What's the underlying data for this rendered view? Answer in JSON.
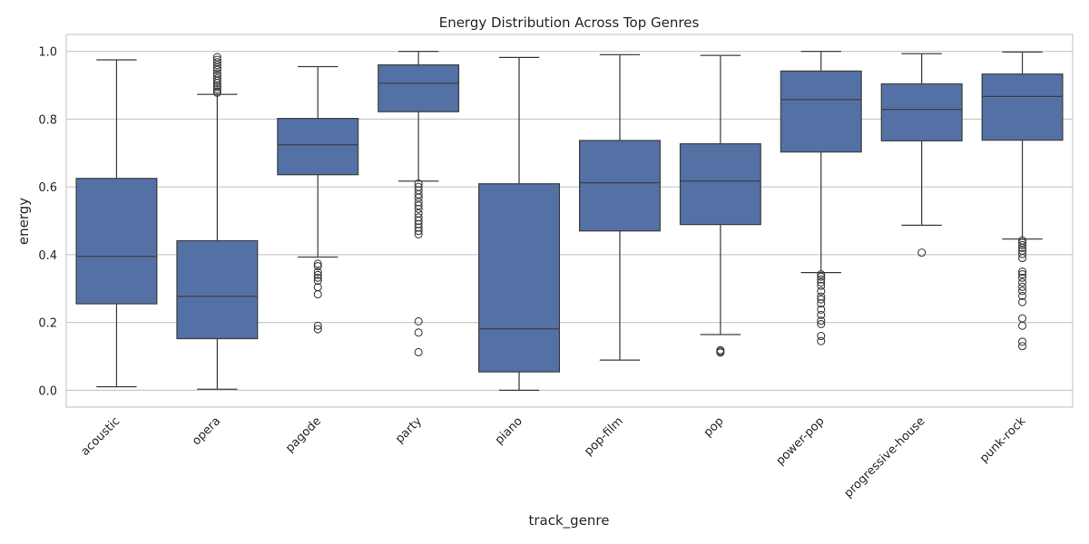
{
  "chart_data": {
    "type": "box",
    "title": "Energy Distribution Across Top Genres",
    "xlabel": "track_genre",
    "ylabel": "energy",
    "ylim": [
      -0.05,
      1.05
    ],
    "yticks": [
      0.0,
      0.2,
      0.4,
      0.6,
      0.8,
      1.0
    ],
    "ytick_labels": [
      "0.0",
      "0.2",
      "0.4",
      "0.6",
      "0.8",
      "1.0"
    ],
    "grid": true,
    "box_color": "#5471a6",
    "line_color": "#3f3f3f",
    "categories": [
      "acoustic",
      "opera",
      "pagode",
      "party",
      "piano",
      "pop-film",
      "pop",
      "power-pop",
      "progressive-house",
      "punk-rock"
    ],
    "boxes": [
      {
        "genre": "acoustic",
        "whisker_low": 0.01,
        "q1": 0.255,
        "median": 0.395,
        "q3": 0.625,
        "whisker_high": 0.975,
        "outliers": []
      },
      {
        "genre": "opera",
        "whisker_low": 0.003,
        "q1": 0.152,
        "median": 0.277,
        "q3": 0.441,
        "whisker_high": 0.873,
        "outliers": [
          0.878,
          0.882,
          0.888,
          0.895,
          0.9,
          0.907,
          0.913,
          0.92,
          0.928,
          0.935,
          0.945,
          0.952,
          0.96,
          0.968,
          0.975,
          0.983
        ]
      },
      {
        "genre": "pagode",
        "whisker_low": 0.393,
        "q1": 0.636,
        "median": 0.724,
        "q3": 0.802,
        "whisker_high": 0.955,
        "outliers": [
          0.373,
          0.366,
          0.349,
          0.34,
          0.332,
          0.323,
          0.304,
          0.283,
          0.19,
          0.18
        ]
      },
      {
        "genre": "party",
        "whisker_low": 0.617,
        "q1": 0.822,
        "median": 0.906,
        "q3": 0.96,
        "whisker_high": 1.0,
        "outliers": [
          0.61,
          0.6,
          0.59,
          0.578,
          0.568,
          0.555,
          0.545,
          0.535,
          0.522,
          0.51,
          0.5,
          0.49,
          0.48,
          0.47,
          0.46,
          0.203,
          0.17,
          0.112
        ]
      },
      {
        "genre": "piano",
        "whisker_low": 0.0,
        "q1": 0.054,
        "median": 0.181,
        "q3": 0.609,
        "whisker_high": 0.982,
        "outliers": []
      },
      {
        "genre": "pop-film",
        "whisker_low": 0.089,
        "q1": 0.47,
        "median": 0.612,
        "q3": 0.737,
        "whisker_high": 0.99,
        "outliers": []
      },
      {
        "genre": "pop",
        "whisker_low": 0.164,
        "q1": 0.489,
        "median": 0.617,
        "q3": 0.727,
        "whisker_high": 0.988,
        "outliers": [
          0.118,
          0.114,
          0.111
        ]
      },
      {
        "genre": "power-pop",
        "whisker_low": 0.347,
        "q1": 0.703,
        "median": 0.858,
        "q3": 0.942,
        "whisker_high": 1.0,
        "outliers": [
          0.342,
          0.335,
          0.327,
          0.318,
          0.308,
          0.292,
          0.276,
          0.268,
          0.256,
          0.238,
          0.222,
          0.205,
          0.195,
          0.16,
          0.145
        ]
      },
      {
        "genre": "progressive-house",
        "whisker_low": 0.487,
        "q1": 0.736,
        "median": 0.829,
        "q3": 0.904,
        "whisker_high": 0.993,
        "outliers": [
          0.406
        ]
      },
      {
        "genre": "punk-rock",
        "whisker_low": 0.446,
        "q1": 0.738,
        "median": 0.867,
        "q3": 0.933,
        "whisker_high": 0.998,
        "outliers": [
          0.442,
          0.435,
          0.428,
          0.42,
          0.412,
          0.402,
          0.39,
          0.35,
          0.342,
          0.332,
          0.318,
          0.305,
          0.293,
          0.278,
          0.26,
          0.212,
          0.19,
          0.143,
          0.13
        ]
      }
    ]
  }
}
